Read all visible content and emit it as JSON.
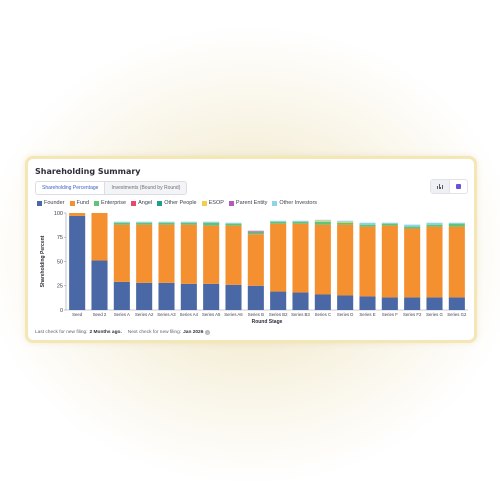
{
  "card": {
    "title": "Shareholding Summary",
    "tabs": [
      {
        "label": "Shareholding Percentage",
        "active": true
      },
      {
        "label": "Investments (Bound by Round)",
        "active": false
      }
    ],
    "view_toggle": {
      "chart_icon": "bar-chart-icon",
      "table_icon": "table-icon",
      "selected": "table"
    }
  },
  "footer": {
    "last_check_label": "Last check for new filing:",
    "last_check_value": "2 Months ago.",
    "next_check_label": "Next check for new filing:",
    "next_check_value": "Jan 2026",
    "info_icon": "info-icon"
  },
  "chart_data": {
    "type": "bar",
    "stacked": true,
    "xlabel": "Round Stage",
    "ylabel": "Shareholding Percent",
    "ylim": [
      0,
      100
    ],
    "yticks": [
      0,
      25,
      50,
      75,
      100
    ],
    "grid": false,
    "legend_position": "top-left",
    "categories": [
      "Seed",
      "Seed 2",
      "Series A",
      "Series A2",
      "Series A3",
      "Series A4",
      "Series A5",
      "Series A6",
      "Series B",
      "Series B2",
      "Series B3",
      "Series C",
      "Series D",
      "Series E",
      "Series F",
      "Series F2",
      "Series G",
      "Series G2"
    ],
    "series": [
      {
        "name": "Founder",
        "color": "#4a68a6",
        "values": [
          97,
          51,
          29,
          28,
          28,
          27,
          27,
          26,
          25,
          19,
          18,
          16,
          15,
          14,
          13,
          13,
          13,
          13
        ]
      },
      {
        "name": "Fund",
        "color": "#f59030",
        "values": [
          3,
          49,
          59,
          60,
          60,
          61,
          60,
          61,
          53,
          70,
          71,
          72,
          73,
          72,
          74,
          71,
          73,
          73
        ]
      },
      {
        "name": "Enterprise",
        "color": "#5fc47a",
        "values": [
          0,
          0,
          2,
          2,
          2,
          2,
          3,
          2,
          2,
          2,
          2,
          3,
          2,
          2,
          2,
          2,
          2,
          3
        ]
      },
      {
        "name": "Angel",
        "color": "#e8496a",
        "values": [
          0,
          0,
          0,
          0,
          0,
          0,
          0,
          0,
          1,
          0,
          0,
          0,
          0,
          0,
          0,
          0,
          0,
          0
        ]
      },
      {
        "name": "Other People",
        "color": "#1f9e8a",
        "values": [
          0,
          0,
          0,
          0,
          0,
          0,
          0,
          0,
          0,
          0,
          0,
          0,
          0,
          0,
          0,
          0,
          0,
          0
        ]
      },
      {
        "name": "ESOP",
        "color": "#f2cf4a",
        "values": [
          0,
          0,
          0,
          0,
          0,
          0,
          0,
          0,
          0,
          0,
          0,
          1,
          1,
          0,
          0,
          0,
          0,
          0
        ]
      },
      {
        "name": "Parent Entity",
        "color": "#b05cb8",
        "values": [
          0,
          0,
          0,
          0,
          0,
          0,
          0,
          0,
          0,
          0,
          0,
          0,
          0,
          0,
          0,
          0,
          0,
          0
        ]
      },
      {
        "name": "Other Investors",
        "color": "#8fd3e8",
        "values": [
          0,
          0,
          1,
          1,
          1,
          1,
          1,
          1,
          1,
          1,
          1,
          1,
          1,
          2,
          1,
          2,
          2,
          1
        ]
      }
    ]
  }
}
